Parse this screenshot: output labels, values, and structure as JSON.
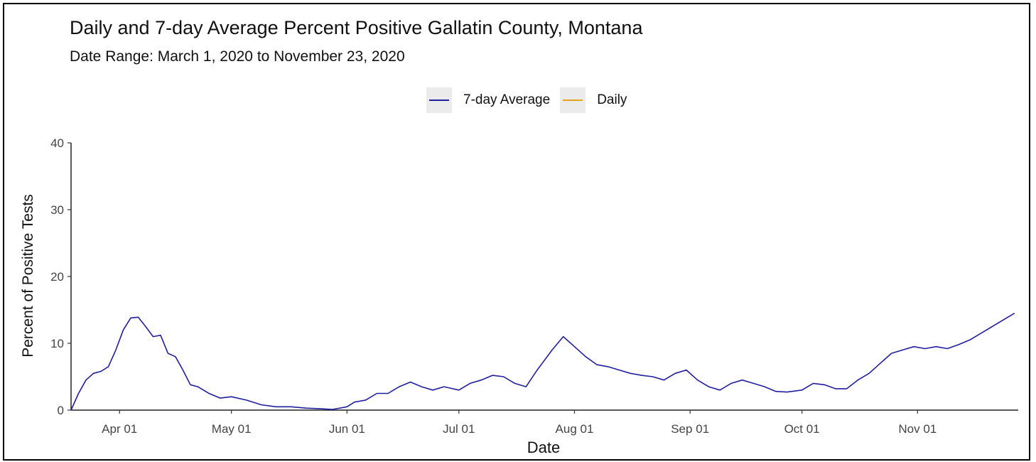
{
  "chart_data": {
    "type": "line",
    "title": "Daily and 7-day Average Percent Positive Gallatin County, Montana",
    "subtitle": "Date Range: March 1, 2020 to November 23, 2020",
    "xlabel": "Date",
    "ylabel": "Percent of Positive Tests",
    "x_range": [
      "2020-03-19",
      "2020-11-28"
    ],
    "ylim": [
      0,
      40
    ],
    "y_ticks": [
      0,
      10,
      20,
      30,
      40
    ],
    "x_ticks": [
      {
        "date": "2020-04-01",
        "label": "Apr 01"
      },
      {
        "date": "2020-05-01",
        "label": "May 01"
      },
      {
        "date": "2020-06-01",
        "label": "Jun 01"
      },
      {
        "date": "2020-07-01",
        "label": "Jul 01"
      },
      {
        "date": "2020-08-01",
        "label": "Aug 01"
      },
      {
        "date": "2020-09-01",
        "label": "Sep 01"
      },
      {
        "date": "2020-10-01",
        "label": "Oct 01"
      },
      {
        "date": "2020-11-01",
        "label": "Nov 01"
      }
    ],
    "grid": false,
    "legend_position": "top",
    "series": [
      {
        "name": "7-day Average",
        "color": "#1f1fa0",
        "points": [
          [
            "2020-03-19",
            0
          ],
          [
            "2020-03-21",
            2.5
          ],
          [
            "2020-03-23",
            4.5
          ],
          [
            "2020-03-25",
            5.5
          ],
          [
            "2020-03-27",
            5.8
          ],
          [
            "2020-03-29",
            6.5
          ],
          [
            "2020-03-31",
            9.0
          ],
          [
            "2020-04-02",
            12.0
          ],
          [
            "2020-04-04",
            13.8
          ],
          [
            "2020-04-06",
            13.9
          ],
          [
            "2020-04-08",
            12.5
          ],
          [
            "2020-04-10",
            11.0
          ],
          [
            "2020-04-12",
            11.2
          ],
          [
            "2020-04-14",
            8.5
          ],
          [
            "2020-04-16",
            8.0
          ],
          [
            "2020-04-18",
            6.0
          ],
          [
            "2020-04-20",
            3.8
          ],
          [
            "2020-04-22",
            3.5
          ],
          [
            "2020-04-25",
            2.5
          ],
          [
            "2020-04-28",
            1.8
          ],
          [
            "2020-05-01",
            2.0
          ],
          [
            "2020-05-05",
            1.5
          ],
          [
            "2020-05-09",
            0.8
          ],
          [
            "2020-05-13",
            0.5
          ],
          [
            "2020-05-17",
            0.5
          ],
          [
            "2020-05-21",
            0.3
          ],
          [
            "2020-05-25",
            0.2
          ],
          [
            "2020-05-28",
            0.1
          ],
          [
            "2020-06-01",
            0.5
          ],
          [
            "2020-06-03",
            1.2
          ],
          [
            "2020-06-06",
            1.5
          ],
          [
            "2020-06-09",
            2.5
          ],
          [
            "2020-06-12",
            2.5
          ],
          [
            "2020-06-15",
            3.5
          ],
          [
            "2020-06-18",
            4.2
          ],
          [
            "2020-06-21",
            3.5
          ],
          [
            "2020-06-24",
            3.0
          ],
          [
            "2020-06-27",
            3.5
          ],
          [
            "2020-07-01",
            3.0
          ],
          [
            "2020-07-04",
            4.0
          ],
          [
            "2020-07-07",
            4.5
          ],
          [
            "2020-07-10",
            5.2
          ],
          [
            "2020-07-13",
            5.0
          ],
          [
            "2020-07-16",
            4.0
          ],
          [
            "2020-07-19",
            3.5
          ],
          [
            "2020-07-22",
            6.0
          ],
          [
            "2020-07-26",
            9.0
          ],
          [
            "2020-07-29",
            11.0
          ],
          [
            "2020-08-01",
            9.5
          ],
          [
            "2020-08-04",
            8.0
          ],
          [
            "2020-08-07",
            6.8
          ],
          [
            "2020-08-10",
            6.5
          ],
          [
            "2020-08-13",
            6.0
          ],
          [
            "2020-08-16",
            5.5
          ],
          [
            "2020-08-19",
            5.2
          ],
          [
            "2020-08-22",
            5.0
          ],
          [
            "2020-08-25",
            4.5
          ],
          [
            "2020-08-28",
            5.5
          ],
          [
            "2020-08-31",
            6.0
          ],
          [
            "2020-09-03",
            4.5
          ],
          [
            "2020-09-06",
            3.5
          ],
          [
            "2020-09-09",
            3.0
          ],
          [
            "2020-09-12",
            4.0
          ],
          [
            "2020-09-15",
            4.5
          ],
          [
            "2020-09-18",
            4.0
          ],
          [
            "2020-09-21",
            3.5
          ],
          [
            "2020-09-24",
            2.8
          ],
          [
            "2020-09-27",
            2.7
          ],
          [
            "2020-10-01",
            3.0
          ],
          [
            "2020-10-04",
            4.0
          ],
          [
            "2020-10-07",
            3.8
          ],
          [
            "2020-10-10",
            3.2
          ],
          [
            "2020-10-13",
            3.2
          ],
          [
            "2020-10-16",
            4.5
          ],
          [
            "2020-10-19",
            5.5
          ],
          [
            "2020-10-22",
            7.0
          ],
          [
            "2020-10-25",
            8.5
          ],
          [
            "2020-10-28",
            9.0
          ],
          [
            "2020-10-31",
            9.5
          ],
          [
            "2020-11-03",
            9.2
          ],
          [
            "2020-11-06",
            9.5
          ],
          [
            "2020-11-09",
            9.2
          ],
          [
            "2020-11-12",
            9.8
          ],
          [
            "2020-11-15",
            10.5
          ],
          [
            "2020-11-18",
            11.5
          ],
          [
            "2020-11-21",
            12.5
          ],
          [
            "2020-11-24",
            13.5
          ],
          [
            "2020-11-27",
            14.5
          ]
        ]
      },
      {
        "name": "Daily",
        "color": "#e8a317",
        "points": []
      }
    ]
  },
  "legend": {
    "avg_label": "7-day Average",
    "daily_label": "Daily"
  }
}
